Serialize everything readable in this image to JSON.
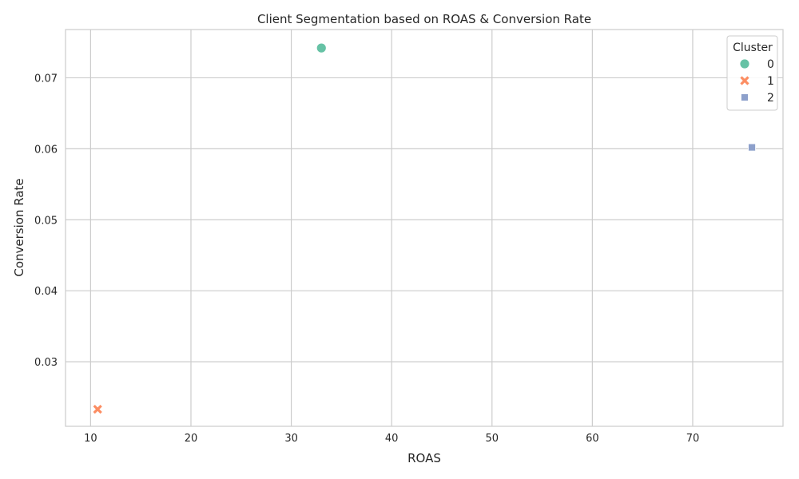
{
  "chart_data": {
    "type": "scatter",
    "title": "Client Segmentation based on ROAS & Conversion Rate",
    "xlabel": "ROAS",
    "ylabel": "Conversion Rate",
    "xlim": [
      7.5,
      79.0
    ],
    "ylim": [
      0.0209,
      0.0768
    ],
    "xticks": [
      10,
      20,
      30,
      40,
      50,
      60,
      70
    ],
    "yticks": [
      0.03,
      0.04,
      0.05,
      0.06,
      0.07
    ],
    "xtick_labels": [
      "10",
      "20",
      "30",
      "40",
      "50",
      "60",
      "70"
    ],
    "ytick_labels": [
      "0.03",
      "0.04",
      "0.05",
      "0.06",
      "0.07"
    ],
    "grid": true,
    "legend": {
      "title": "Cluster",
      "placement": "top-right"
    },
    "series": [
      {
        "name": "0",
        "marker": "circle",
        "color": "#66c2a5",
        "points": [
          {
            "x": 33.0,
            "y": 0.0742
          }
        ]
      },
      {
        "name": "1",
        "marker": "x",
        "color": "#fc8d62",
        "points": [
          {
            "x": 10.7,
            "y": 0.0233
          }
        ]
      },
      {
        "name": "2",
        "marker": "square",
        "color": "#8da0cb",
        "points": [
          {
            "x": 75.9,
            "y": 0.0602
          }
        ]
      }
    ]
  }
}
